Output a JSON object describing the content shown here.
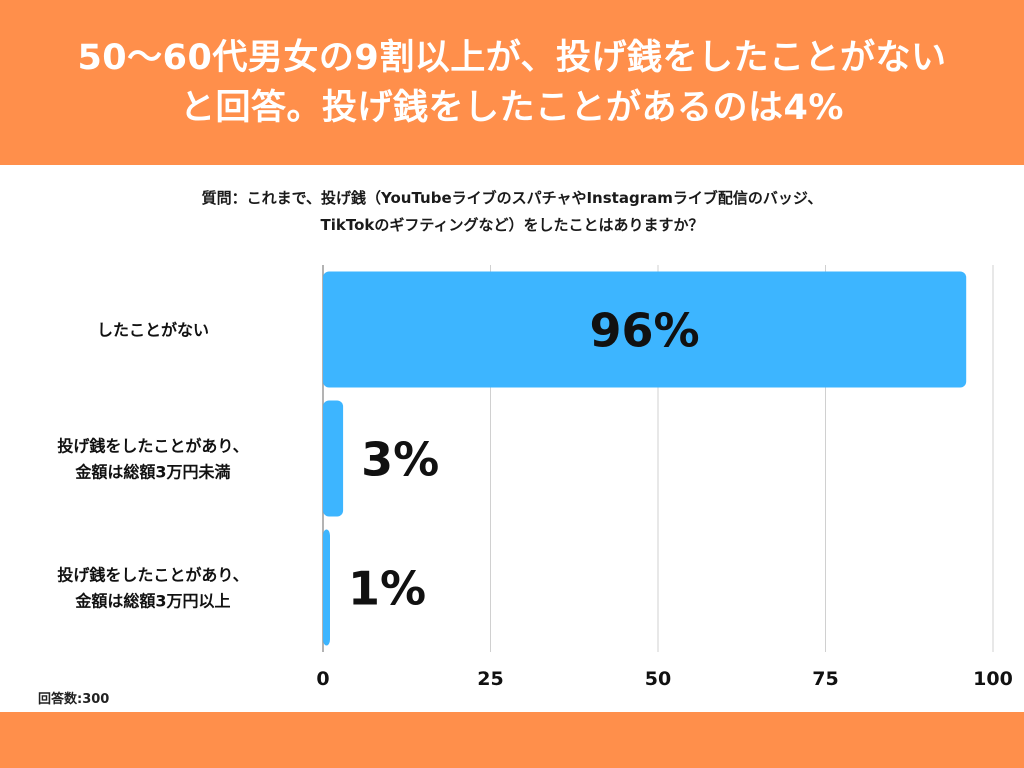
{
  "header": {
    "title_line1": "50〜60代男女の9割以上が、投げ銭をしたことがない",
    "title_line2": "と回答。投げ銭をしたことがあるのは4%"
  },
  "question": {
    "line1": "質問：これまで、投げ銭（YouTubeライブのスパチャやInstagramライブ配信のバッジ、",
    "line2": "TikTokのギフティングなど）をしたことはありますか？"
  },
  "footer": {
    "respondents": "回答数:300"
  },
  "colors": {
    "header_bg": "#ff8f4b",
    "bar": "#3db5ff",
    "grid": "#d0d0d0",
    "axis": "#9a9a9a"
  },
  "chart_data": {
    "type": "bar",
    "orientation": "horizontal",
    "categories": [
      [
        "したことがない"
      ],
      [
        "投げ銭をしたことがあり、",
        "金額は総額3万円未満"
      ],
      [
        "投げ銭をしたことがあり、",
        "金額は総額3万円以上"
      ]
    ],
    "values": [
      96,
      3,
      1
    ],
    "value_labels": [
      "96%",
      "3%",
      "1%"
    ],
    "xlim": [
      0,
      100
    ],
    "xticks": [
      0,
      25,
      50,
      75,
      100
    ],
    "grid": true,
    "legend": "none"
  }
}
